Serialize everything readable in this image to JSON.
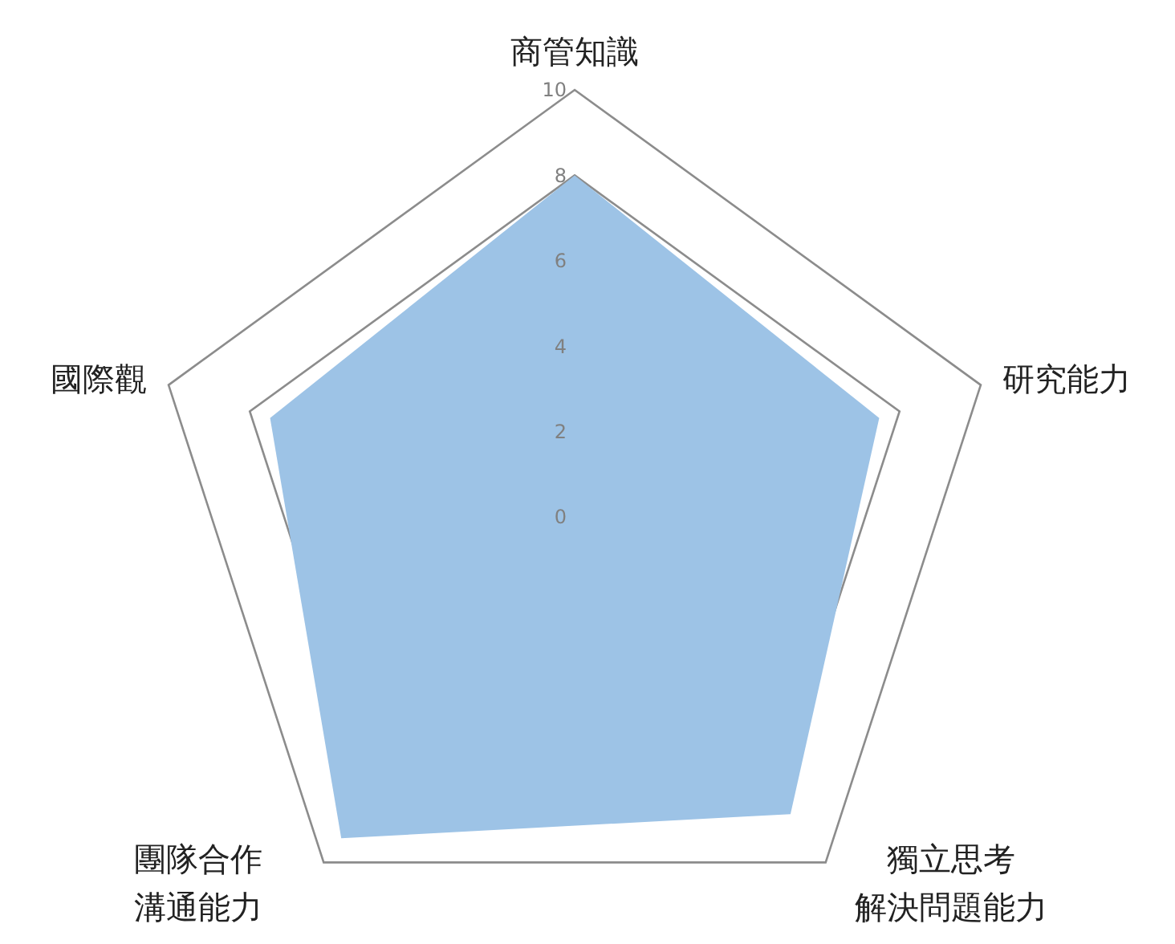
{
  "chart_data": {
    "type": "radar",
    "categories": [
      "商管知識",
      "研究能力",
      "獨立思考解決問題能力",
      "團隊合作溝通能力",
      "國際觀"
    ],
    "series": [
      {
        "color": "#9dc3e6",
        "values": [
          8,
          7.5,
          8.6,
          9.3,
          7.5
        ]
      }
    ],
    "ylim": [
      0,
      10
    ],
    "yticks": [
      0,
      2,
      4,
      6,
      8,
      10
    ],
    "grid": true
  }
}
